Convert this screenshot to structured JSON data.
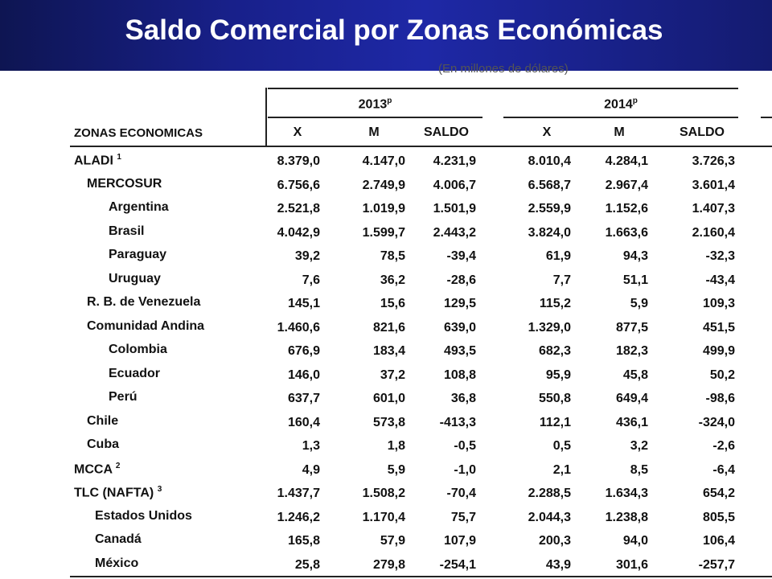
{
  "title": "Saldo Comercial por Zonas Económicas",
  "subtitle": "(En millones de dólares)",
  "header": {
    "zone_col": "ZONAS ECONOMICAS",
    "years": [
      {
        "year": "2013",
        "mark": "p"
      },
      {
        "year": "2014",
        "mark": "p"
      }
    ],
    "cols": [
      "X",
      "M",
      "SALDO"
    ]
  },
  "rows": [
    {
      "zone": "ALADI",
      "note": "1",
      "level": 0,
      "v2013": [
        "8.379,0",
        "4.147,0",
        "4.231,9"
      ],
      "v2014": [
        "8.010,4",
        "4.284,1",
        "3.726,3"
      ]
    },
    {
      "zone": "MERCOSUR",
      "note": "",
      "level": 1,
      "v2013": [
        "6.756,6",
        "2.749,9",
        "4.006,7"
      ],
      "v2014": [
        "6.568,7",
        "2.967,4",
        "3.601,4"
      ]
    },
    {
      "zone": "Argentina",
      "note": "",
      "level": 2,
      "v2013": [
        "2.521,8",
        "1.019,9",
        "1.501,9"
      ],
      "v2014": [
        "2.559,9",
        "1.152,6",
        "1.407,3"
      ]
    },
    {
      "zone": "Brasil",
      "note": "",
      "level": 2,
      "v2013": [
        "4.042,9",
        "1.599,7",
        "2.443,2"
      ],
      "v2014": [
        "3.824,0",
        "1.663,6",
        "2.160,4"
      ]
    },
    {
      "zone": "Paraguay",
      "note": "",
      "level": 2,
      "v2013": [
        "39,2",
        "78,5",
        "-39,4"
      ],
      "v2014": [
        "61,9",
        "94,3",
        "-32,3"
      ]
    },
    {
      "zone": "Uruguay",
      "note": "",
      "level": 2,
      "v2013": [
        "7,6",
        "36,2",
        "-28,6"
      ],
      "v2014": [
        "7,7",
        "51,1",
        "-43,4"
      ]
    },
    {
      "zone": "R. B. de Venezuela",
      "note": "",
      "level": 1,
      "v2013": [
        "145,1",
        "15,6",
        "129,5"
      ],
      "v2014": [
        "115,2",
        "5,9",
        "109,3"
      ]
    },
    {
      "zone": "Comunidad Andina",
      "note": "",
      "level": 1,
      "v2013": [
        "1.460,6",
        "821,6",
        "639,0"
      ],
      "v2014": [
        "1.329,0",
        "877,5",
        "451,5"
      ]
    },
    {
      "zone": "Colombia",
      "note": "",
      "level": 2,
      "v2013": [
        "676,9",
        "183,4",
        "493,5"
      ],
      "v2014": [
        "682,3",
        "182,3",
        "499,9"
      ]
    },
    {
      "zone": "Ecuador",
      "note": "",
      "level": 2,
      "v2013": [
        "146,0",
        "37,2",
        "108,8"
      ],
      "v2014": [
        "95,9",
        "45,8",
        "50,2"
      ]
    },
    {
      "zone": "Perú",
      "note": "",
      "level": 2,
      "v2013": [
        "637,7",
        "601,0",
        "36,8"
      ],
      "v2014": [
        "550,8",
        "649,4",
        "-98,6"
      ]
    },
    {
      "zone": "Chile",
      "note": "",
      "level": 1,
      "v2013": [
        "160,4",
        "573,8",
        "-413,3"
      ],
      "v2014": [
        "112,1",
        "436,1",
        "-324,0"
      ]
    },
    {
      "zone": "Cuba",
      "note": "",
      "level": 1,
      "v2013": [
        "1,3",
        "1,8",
        "-0,5"
      ],
      "v2014": [
        "0,5",
        "3,2",
        "-2,6"
      ]
    },
    {
      "zone": "MCCA",
      "note": "2",
      "level": 0,
      "v2013": [
        "4,9",
        "5,9",
        "-1,0"
      ],
      "v2014": [
        "2,1",
        "8,5",
        "-6,4"
      ]
    },
    {
      "zone": "TLC (NAFTA)",
      "note": "3",
      "level": 0,
      "v2013": [
        "1.437,7",
        "1.508,2",
        "-70,4"
      ],
      "v2014": [
        "2.288,5",
        "1.634,3",
        "654,2"
      ]
    },
    {
      "zone": "Estados Unidos",
      "note": "",
      "level": 1.6,
      "v2013": [
        "1.246,2",
        "1.170,4",
        "75,7"
      ],
      "v2014": [
        "2.044,3",
        "1.238,8",
        "805,5"
      ]
    },
    {
      "zone": "Canadá",
      "note": "",
      "level": 1.6,
      "v2013": [
        "165,8",
        "57,9",
        "107,9"
      ],
      "v2014": [
        "200,3",
        "94,0",
        "106,4"
      ]
    },
    {
      "zone": "México",
      "note": "",
      "level": 1.6,
      "v2013": [
        "25,8",
        "279,8",
        "-254,1"
      ],
      "v2014": [
        "43,9",
        "301,6",
        "-257,7"
      ]
    }
  ]
}
